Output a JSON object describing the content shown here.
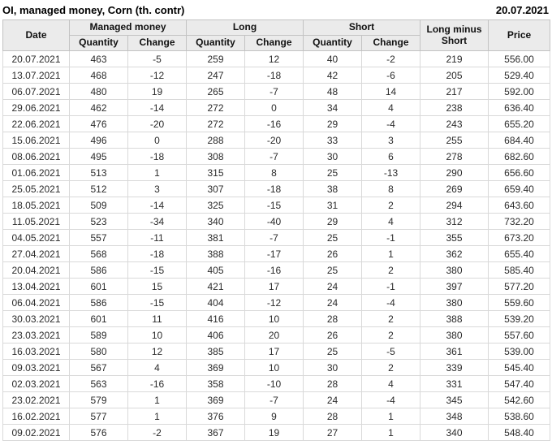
{
  "header": {
    "title": "OI, managed money, Corn (th. contr)",
    "report_date": "20.07.2021"
  },
  "table": {
    "columns": {
      "date": "Date",
      "managed_money": "Managed money",
      "long": "Long",
      "short": "Short",
      "long_minus_short": "Long minus Short",
      "price": "Price",
      "quantity": "Quantity",
      "change": "Change"
    },
    "rows": [
      {
        "date": "20.07.2021",
        "mm_quantity": "463",
        "mm_change": "-5",
        "mm_dir": "down",
        "long_quantity": "259",
        "long_change": "12",
        "long_dir": "up",
        "short_quantity": "40",
        "short_change": "-2",
        "short_dir": "down",
        "long_minus_short": "219",
        "price": "556.00"
      },
      {
        "date": "13.07.2021",
        "mm_quantity": "468",
        "mm_change": "-12",
        "mm_dir": "down",
        "long_quantity": "247",
        "long_change": "-18",
        "long_dir": "down",
        "short_quantity": "42",
        "short_change": "-6",
        "short_dir": "down",
        "long_minus_short": "205",
        "price": "529.40"
      },
      {
        "date": "06.07.2021",
        "mm_quantity": "480",
        "mm_change": "19",
        "mm_dir": "up",
        "long_quantity": "265",
        "long_change": "-7",
        "long_dir": "down",
        "short_quantity": "48",
        "short_change": "14",
        "short_dir": "up",
        "long_minus_short": "217",
        "price": "592.00"
      },
      {
        "date": "29.06.2021",
        "mm_quantity": "462",
        "mm_change": "-14",
        "mm_dir": "down",
        "long_quantity": "272",
        "long_change": "0",
        "long_dir": "down",
        "short_quantity": "34",
        "short_change": "4",
        "short_dir": "up",
        "long_minus_short": "238",
        "price": "636.40"
      },
      {
        "date": "22.06.2021",
        "mm_quantity": "476",
        "mm_change": "-20",
        "mm_dir": "down",
        "long_quantity": "272",
        "long_change": "-16",
        "long_dir": "down",
        "short_quantity": "29",
        "short_change": "-4",
        "short_dir": "down",
        "long_minus_short": "243",
        "price": "655.20"
      },
      {
        "date": "15.06.2021",
        "mm_quantity": "496",
        "mm_change": "0",
        "mm_dir": "up",
        "long_quantity": "288",
        "long_change": "-20",
        "long_dir": "down",
        "short_quantity": "33",
        "short_change": "3",
        "short_dir": "up",
        "long_minus_short": "255",
        "price": "684.40"
      },
      {
        "date": "08.06.2021",
        "mm_quantity": "495",
        "mm_change": "-18",
        "mm_dir": "down",
        "long_quantity": "308",
        "long_change": "-7",
        "long_dir": "down",
        "short_quantity": "30",
        "short_change": "6",
        "short_dir": "up",
        "long_minus_short": "278",
        "price": "682.60"
      },
      {
        "date": "01.06.2021",
        "mm_quantity": "513",
        "mm_change": "1",
        "mm_dir": "up",
        "long_quantity": "315",
        "long_change": "8",
        "long_dir": "up",
        "short_quantity": "25",
        "short_change": "-13",
        "short_dir": "down",
        "long_minus_short": "290",
        "price": "656.60"
      },
      {
        "date": "25.05.2021",
        "mm_quantity": "512",
        "mm_change": "3",
        "mm_dir": "up",
        "long_quantity": "307",
        "long_change": "-18",
        "long_dir": "down",
        "short_quantity": "38",
        "short_change": "8",
        "short_dir": "up",
        "long_minus_short": "269",
        "price": "659.40"
      },
      {
        "date": "18.05.2021",
        "mm_quantity": "509",
        "mm_change": "-14",
        "mm_dir": "down",
        "long_quantity": "325",
        "long_change": "-15",
        "long_dir": "down",
        "short_quantity": "31",
        "short_change": "2",
        "short_dir": "up",
        "long_minus_short": "294",
        "price": "643.60"
      },
      {
        "date": "11.05.2021",
        "mm_quantity": "523",
        "mm_change": "-34",
        "mm_dir": "down",
        "long_quantity": "340",
        "long_change": "-40",
        "long_dir": "down",
        "short_quantity": "29",
        "short_change": "4",
        "short_dir": "up",
        "long_minus_short": "312",
        "price": "732.20"
      },
      {
        "date": "04.05.2021",
        "mm_quantity": "557",
        "mm_change": "-11",
        "mm_dir": "down",
        "long_quantity": "381",
        "long_change": "-7",
        "long_dir": "down",
        "short_quantity": "25",
        "short_change": "-1",
        "short_dir": "down",
        "long_minus_short": "355",
        "price": "673.20"
      },
      {
        "date": "27.04.2021",
        "mm_quantity": "568",
        "mm_change": "-18",
        "mm_dir": "down",
        "long_quantity": "388",
        "long_change": "-17",
        "long_dir": "down",
        "short_quantity": "26",
        "short_change": "1",
        "short_dir": "up",
        "long_minus_short": "362",
        "price": "655.40"
      },
      {
        "date": "20.04.2021",
        "mm_quantity": "586",
        "mm_change": "-15",
        "mm_dir": "down",
        "long_quantity": "405",
        "long_change": "-16",
        "long_dir": "down",
        "short_quantity": "25",
        "short_change": "2",
        "short_dir": "up",
        "long_minus_short": "380",
        "price": "585.40"
      },
      {
        "date": "13.04.2021",
        "mm_quantity": "601",
        "mm_change": "15",
        "mm_dir": "up",
        "long_quantity": "421",
        "long_change": "17",
        "long_dir": "up",
        "short_quantity": "24",
        "short_change": "-1",
        "short_dir": "down",
        "long_minus_short": "397",
        "price": "577.20"
      },
      {
        "date": "06.04.2021",
        "mm_quantity": "586",
        "mm_change": "-15",
        "mm_dir": "down",
        "long_quantity": "404",
        "long_change": "-12",
        "long_dir": "down",
        "short_quantity": "24",
        "short_change": "-4",
        "short_dir": "down",
        "long_minus_short": "380",
        "price": "559.60"
      },
      {
        "date": "30.03.2021",
        "mm_quantity": "601",
        "mm_change": "11",
        "mm_dir": "up",
        "long_quantity": "416",
        "long_change": "10",
        "long_dir": "up",
        "short_quantity": "28",
        "short_change": "2",
        "short_dir": "up",
        "long_minus_short": "388",
        "price": "539.20"
      },
      {
        "date": "23.03.2021",
        "mm_quantity": "589",
        "mm_change": "10",
        "mm_dir": "up",
        "long_quantity": "406",
        "long_change": "20",
        "long_dir": "up",
        "short_quantity": "26",
        "short_change": "2",
        "short_dir": "up",
        "long_minus_short": "380",
        "price": "557.60"
      },
      {
        "date": "16.03.2021",
        "mm_quantity": "580",
        "mm_change": "12",
        "mm_dir": "up",
        "long_quantity": "385",
        "long_change": "17",
        "long_dir": "up",
        "short_quantity": "25",
        "short_change": "-5",
        "short_dir": "down",
        "long_minus_short": "361",
        "price": "539.00"
      },
      {
        "date": "09.03.2021",
        "mm_quantity": "567",
        "mm_change": "4",
        "mm_dir": "up",
        "long_quantity": "369",
        "long_change": "10",
        "long_dir": "up",
        "short_quantity": "30",
        "short_change": "2",
        "short_dir": "up",
        "long_minus_short": "339",
        "price": "545.40"
      },
      {
        "date": "02.03.2021",
        "mm_quantity": "563",
        "mm_change": "-16",
        "mm_dir": "down",
        "long_quantity": "358",
        "long_change": "-10",
        "long_dir": "down",
        "short_quantity": "28",
        "short_change": "4",
        "short_dir": "up",
        "long_minus_short": "331",
        "price": "547.40"
      },
      {
        "date": "23.02.2021",
        "mm_quantity": "579",
        "mm_change": "1",
        "mm_dir": "up",
        "long_quantity": "369",
        "long_change": "-7",
        "long_dir": "down",
        "short_quantity": "24",
        "short_change": "-4",
        "short_dir": "down",
        "long_minus_short": "345",
        "price": "542.60"
      },
      {
        "date": "16.02.2021",
        "mm_quantity": "577",
        "mm_change": "1",
        "mm_dir": "up",
        "long_quantity": "376",
        "long_change": "9",
        "long_dir": "up",
        "short_quantity": "28",
        "short_change": "1",
        "short_dir": "up",
        "long_minus_short": "348",
        "price": "538.60"
      },
      {
        "date": "09.02.2021",
        "mm_quantity": "576",
        "mm_change": "-2",
        "mm_dir": "down",
        "long_quantity": "367",
        "long_change": "19",
        "long_dir": "up",
        "short_quantity": "27",
        "short_change": "1",
        "short_dir": "up",
        "long_minus_short": "340",
        "price": "548.40"
      }
    ]
  },
  "colors": {
    "positive_change": "#2e9b2e",
    "negative_change": "#cc2e2e",
    "header_background": "#ebebeb"
  }
}
